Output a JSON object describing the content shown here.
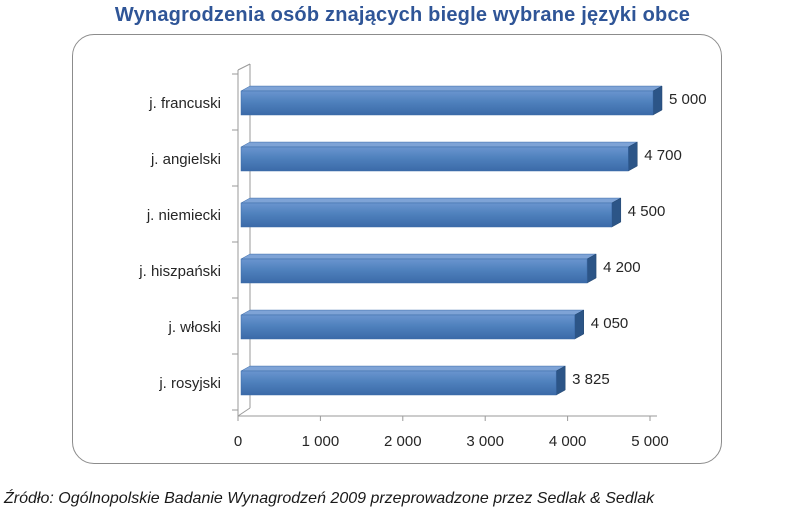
{
  "title": "Wynagrodzenia osób znających biegle wybrane języki obce",
  "source": "Źródło: Ogólnopolskie Badanie Wynagrodzeń 2009 przeprowadzone przez Sedlak & Sedlak",
  "colors": {
    "bar_front": "#4f81bd",
    "bar_top": "#7ea3d6",
    "bar_side": "#2c5587",
    "title": "#2f5597"
  },
  "chart_data": {
    "type": "bar",
    "orientation": "horizontal",
    "categories": [
      "j. francuski",
      "j. angielski",
      "j. niemiecki",
      "j. hiszpański",
      "j. włoski",
      "j. rosyjski"
    ],
    "values": [
      5000,
      4700,
      4500,
      4200,
      4050,
      3825
    ],
    "value_labels": [
      "5 000",
      "4 700",
      "4 500",
      "4 200",
      "4 050",
      "3 825"
    ],
    "x_ticks": [
      0,
      1000,
      2000,
      3000,
      4000,
      5000
    ],
    "x_tick_labels": [
      "0",
      "1 000",
      "2 000",
      "3 000",
      "4 000",
      "5 000"
    ],
    "xlim": [
      0,
      5000
    ],
    "grid": false,
    "legend": "none",
    "title": "Wynagrodzenia osób znających biegle wybrane języki obce",
    "xlabel": "",
    "ylabel": ""
  }
}
